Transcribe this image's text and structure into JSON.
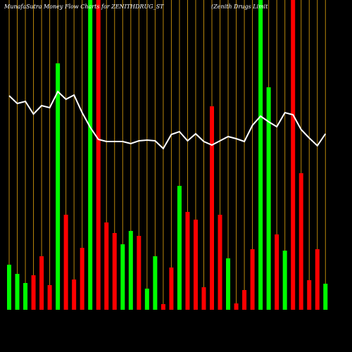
{
  "chart_data": {
    "type": "bar",
    "title": "MunafaSutra  Money Flow  Charts for ZENITHDRUG_ST",
    "subtitle": "(Zenith Drugs Limit",
    "values": [
      64,
      51,
      38,
      49,
      76,
      35,
      350,
      135,
      43,
      88,
      440,
      440,
      124,
      109,
      93,
      112,
      105,
      30,
      76,
      8,
      60,
      176,
      139,
      128,
      32,
      289,
      135,
      73,
      9,
      28,
      86,
      440,
      316,
      107,
      84,
      440,
      194,
      42,
      86,
      37
    ],
    "colors": [
      "#00ff00",
      "#00ff00",
      "#00ff00",
      "#ff0000",
      "#ff0000",
      "#ff0000",
      "#00ff00",
      "#ff0000",
      "#ff0000",
      "#ff0000",
      "#00ff00",
      "#ff0000",
      "#ff0000",
      "#ff0000",
      "#00ff00",
      "#00ff00",
      "#ff0000",
      "#00ff00",
      "#00ff00",
      "#ff0000",
      "#ff0000",
      "#00ff00",
      "#ff0000",
      "#ff0000",
      "#ff0000",
      "#ff0000",
      "#ff0000",
      "#00ff00",
      "#ff0000",
      "#ff0000",
      "#ff0000",
      "#00ff00",
      "#00ff00",
      "#ff0000",
      "#00ff00",
      "#ff0000",
      "#ff0000",
      "#ff0000",
      "#ff0000",
      "#00ff00"
    ],
    "line": {
      "color": "#ffffff",
      "values": [
        304,
        293,
        296,
        278,
        290,
        287,
        310,
        299,
        305,
        280,
        259,
        242,
        239,
        239,
        239,
        236,
        240,
        241,
        240,
        229,
        249,
        253,
        240,
        250,
        239,
        234,
        240,
        246,
        243,
        239,
        262,
        275,
        267,
        260,
        280,
        277,
        256,
        244,
        233,
        250
      ]
    },
    "ylim": [
      0,
      440
    ],
    "grid_color": "#b8860b"
  }
}
